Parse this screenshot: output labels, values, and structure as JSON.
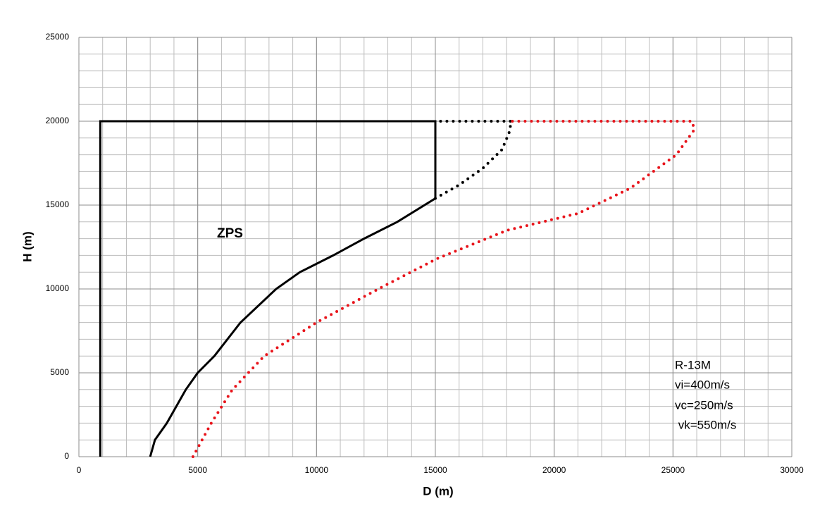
{
  "chart_data": {
    "type": "line",
    "xlabel": "D (m)",
    "ylabel": "H (m)",
    "xlim": [
      0,
      30000
    ],
    "ylim": [
      0,
      25000
    ],
    "xticks": [
      0,
      5000,
      10000,
      15000,
      20000,
      25000,
      30000
    ],
    "yticks": [
      0,
      5000,
      10000,
      15000,
      20000,
      25000
    ],
    "minor_step": 1000,
    "grid": true,
    "series": [
      {
        "color": "#000000",
        "style": "solid",
        "x": [
          900,
          900,
          15000,
          15000,
          13400,
          12000,
          10700,
          9300,
          8300,
          6800,
          5700,
          5000,
          4500,
          3700,
          3200,
          3000
        ],
        "values": [
          0,
          20000,
          20000,
          15400,
          14000,
          13000,
          12000,
          11000,
          10000,
          8000,
          6000,
          5000,
          4000,
          2000,
          1000,
          0
        ]
      },
      {
        "color": "#000000",
        "style": "dotted",
        "x": [
          15000,
          16000,
          17000,
          17800,
          18100,
          18200,
          15000
        ],
        "values": [
          15400,
          16200,
          17200,
          18300,
          19300,
          20000,
          20000
        ]
      },
      {
        "color": "#e8141b",
        "style": "dotted",
        "x": [
          4800,
          5570,
          6460,
          7800,
          10000,
          12600,
          15060,
          18030,
          21000,
          23200,
          25140,
          25900,
          25800,
          18200
        ],
        "values": [
          0,
          2000,
          4000,
          6000,
          8000,
          10000,
          11800,
          13500,
          14500,
          16000,
          18000,
          19500,
          20000,
          20000
        ]
      }
    ],
    "annotations": [
      "ZPS",
      "R-13M",
      "vi=400m/s",
      "vc=250m/s",
      " vk=550m/s"
    ]
  }
}
